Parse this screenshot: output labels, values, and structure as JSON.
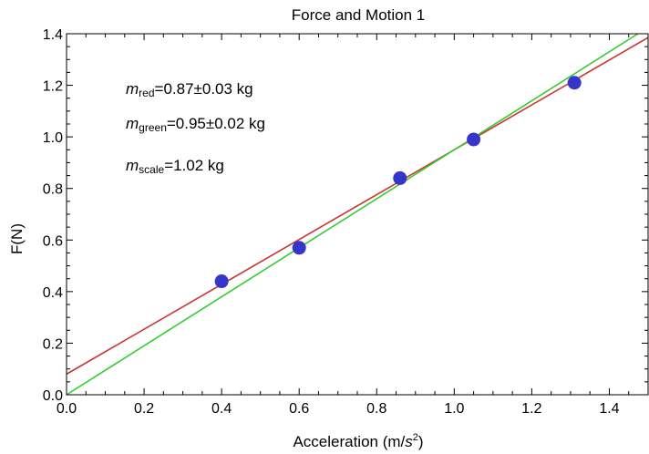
{
  "chart_data": {
    "type": "scatter",
    "title": "Force and Motion 1",
    "xlabel_main": "Acceleration (m/",
    "xlabel_var": "s",
    "xlabel_sup": "2",
    "xlabel_close": ")",
    "ylabel": "F(N)",
    "xlim": [
      0.0,
      1.5
    ],
    "ylim": [
      0.0,
      1.4
    ],
    "x_ticks": [
      "0.0",
      "0.2",
      "0.4",
      "0.6",
      "0.8",
      "1.0",
      "1.2",
      "1.4"
    ],
    "y_ticks": [
      "0.0",
      "0.2",
      "0.4",
      "0.6",
      "0.8",
      "1.0",
      "1.2",
      "1.4"
    ],
    "grid": false,
    "points": {
      "color": "#3535c9",
      "x": [
        0.4,
        0.6,
        0.86,
        1.05,
        1.31
      ],
      "y": [
        0.44,
        0.57,
        0.84,
        0.99,
        1.21
      ]
    },
    "fits": [
      {
        "color": "#cc3333",
        "slope": 0.87,
        "intercept": 0.08
      },
      {
        "color": "#33cc33",
        "slope": 0.95,
        "intercept": 0.0
      }
    ],
    "annotations": [
      {
        "var": "m",
        "sub": "red",
        "text": "=0.87±0.03 kg"
      },
      {
        "var": "m",
        "sub": "green",
        "text": "=0.95±0.02 kg"
      },
      {
        "var": "m",
        "sub": "scale",
        "text": "=1.02 kg"
      }
    ]
  }
}
